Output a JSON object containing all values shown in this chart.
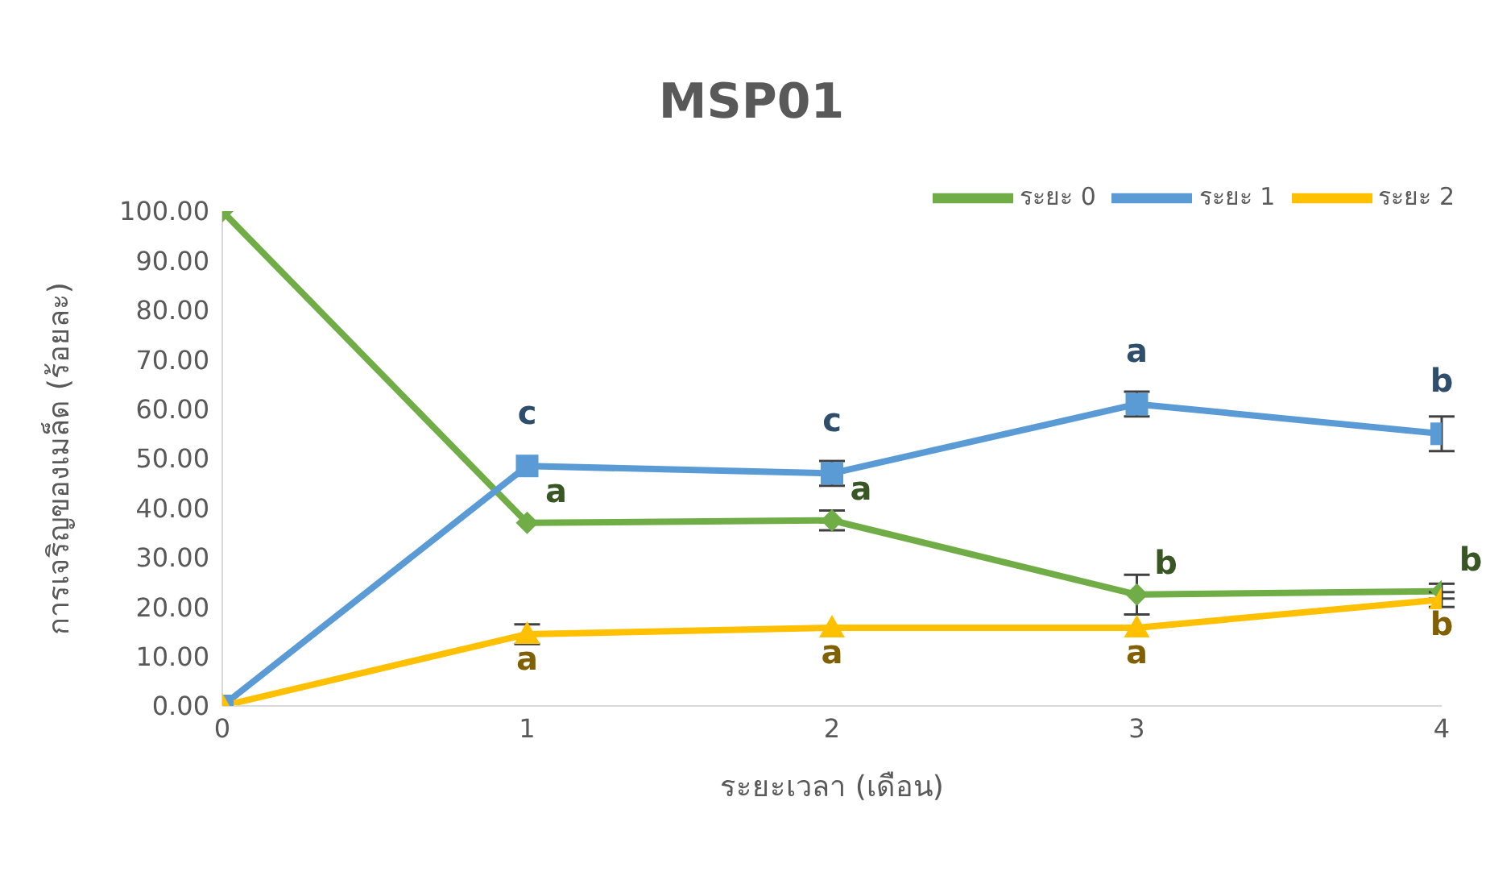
{
  "chart_data": {
    "type": "line",
    "title": "MSP01",
    "xlabel": "ระยะเวลา (เดือน)",
    "ylabel": "การเจริญของเมล็ด (ร้อยละ)",
    "x": [
      0,
      1,
      2,
      3,
      4
    ],
    "series": [
      {
        "name": "ระยะ 0",
        "color": "#70ad47",
        "marker": "diamond",
        "values": [
          100,
          37,
          37.5,
          22.5,
          23.2
        ],
        "errors": [
          null,
          null,
          2,
          4,
          1.5
        ],
        "value_labels": [
          null,
          "a",
          "a",
          "b",
          "b"
        ]
      },
      {
        "name": "ระยะ 1",
        "color": "#5b9bd5",
        "marker": "square",
        "values": [
          0,
          48.5,
          47,
          61,
          55
        ],
        "errors": [
          null,
          null,
          2.5,
          2.5,
          3.5
        ],
        "value_labels": [
          null,
          "c",
          "c",
          "a",
          "b"
        ]
      },
      {
        "name": "ระยะ 2",
        "color": "#ffc000",
        "marker": "triangle",
        "values": [
          0,
          14.5,
          15.8,
          15.8,
          21.5
        ],
        "errors": [
          null,
          2,
          null,
          null,
          1.5
        ],
        "value_labels": [
          null,
          "a",
          "a",
          "a",
          "b"
        ]
      }
    ],
    "xlim": [
      0,
      4
    ],
    "xticks": [
      0,
      1,
      2,
      3,
      4
    ],
    "ylim": [
      0,
      100
    ],
    "yticks": [
      {
        "value": 0,
        "label": "0.00"
      },
      {
        "value": 10,
        "label": "10.00"
      },
      {
        "value": 20,
        "label": "20.00"
      },
      {
        "value": 30,
        "label": "30.00"
      },
      {
        "value": 40,
        "label": "40.00"
      },
      {
        "value": 50,
        "label": "50.00"
      },
      {
        "value": 60,
        "label": "60.00"
      },
      {
        "value": 70,
        "label": "70.00"
      },
      {
        "value": 80,
        "label": "80.00"
      },
      {
        "value": 90,
        "label": "90.00"
      },
      {
        "value": 100,
        "label": "100.00"
      }
    ],
    "grid": false,
    "legend": "top right"
  }
}
